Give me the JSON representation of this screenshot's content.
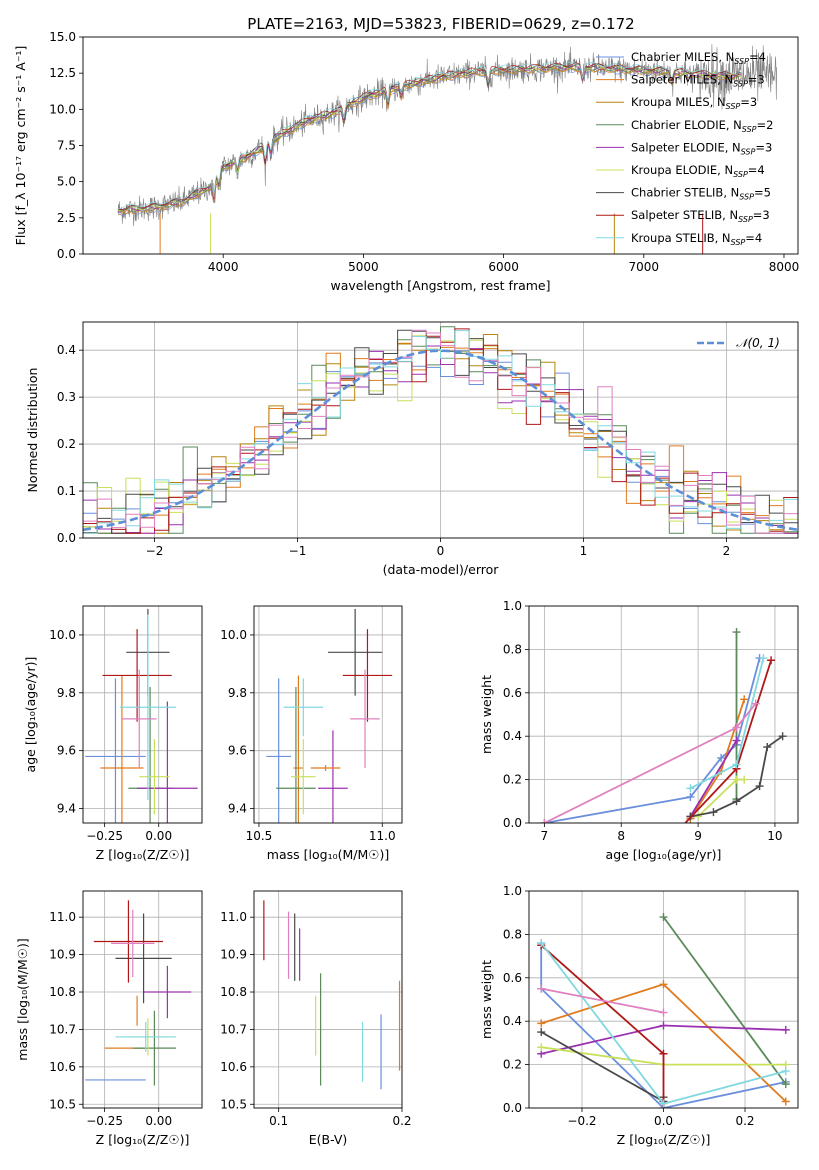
{
  "figure_title": "PLATE=2163, MJD=53823, FIBERID=0629, z=0.172",
  "colors": {
    "Chabrier MILES": "#6a8fdc",
    "Salpeter MILES": "#e07b1f",
    "Kroupa MILES": "#b8860b",
    "Chabrier ELODIE": "#5a8a5a",
    "Salpeter ELODIE": "#9b30b0",
    "Kroupa ELODIE": "#c8e05a",
    "Chabrier STELIB": "#4a4a4a",
    "Salpeter STELIB": "#b01818",
    "Kroupa STELIB": "#80d8e0",
    "pink": "#e080c0",
    "gauss": "#5b8fd8",
    "data": "#808080"
  },
  "chart_data": [
    {
      "id": "spectrum",
      "type": "line",
      "title": "PLATE=2163, MJD=53823, FIBERID=0629, z=0.172",
      "xlabel": "wavelength [Angstrom, rest frame]",
      "ylabel": "Flux [f_λ 10⁻¹⁷ erg cm⁻² s⁻¹ A⁻¹]",
      "xlim": [
        3000,
        8100
      ],
      "ylim": [
        0,
        15
      ],
      "xticks": [
        "4000",
        "5000",
        "6000",
        "7000",
        "8000"
      ],
      "yticks": [
        "0.0",
        "2.5",
        "5.0",
        "7.5",
        "10.0",
        "12.5",
        "15.0"
      ],
      "legend_position": "right",
      "legend": [
        {
          "label": "Chabrier MILES, N",
          "sub": "SSP",
          "tail": "=4",
          "color": "#6a8fdc"
        },
        {
          "label": "Salpeter MILES, N",
          "sub": "SSP",
          "tail": "=3",
          "color": "#e07b1f"
        },
        {
          "label": "Kroupa MILES, N",
          "sub": "SSP",
          "tail": "=3",
          "color": "#b8860b"
        },
        {
          "label": "Chabrier ELODIE, N",
          "sub": "SSP",
          "tail": "=2",
          "color": "#5a8a5a"
        },
        {
          "label": "Salpeter ELODIE, N",
          "sub": "SSP",
          "tail": "=3",
          "color": "#9b30b0"
        },
        {
          "label": "Kroupa ELODIE, N",
          "sub": "SSP",
          "tail": "=4",
          "color": "#c8e05a"
        },
        {
          "label": "Chabrier STELIB, N",
          "sub": "SSP",
          "tail": "=5",
          "color": "#4a4a4a"
        },
        {
          "label": "Salpeter STELIB, N",
          "sub": "SSP",
          "tail": "=3",
          "color": "#b01818"
        },
        {
          "label": "Kroupa STELIB, N",
          "sub": "SSP",
          "tail": "=4",
          "color": "#80d8e0"
        }
      ],
      "continuum": {
        "x": [
          3250,
          3500,
          3700,
          3900,
          4000,
          4200,
          4400,
          4600,
          4800,
          5000,
          5200,
          5400,
          5600,
          5800,
          6000,
          6200,
          6400,
          6600,
          6800,
          7000,
          7200,
          7400,
          7600
        ],
        "y": [
          3.0,
          3.2,
          3.6,
          4.6,
          6.0,
          6.9,
          8.2,
          9.2,
          9.8,
          10.8,
          11.4,
          11.9,
          12.3,
          12.6,
          12.7,
          12.8,
          12.9,
          12.9,
          12.8,
          12.7,
          12.6,
          12.4,
          12.3
        ]
      },
      "data_range": [
        3250,
        7950
      ],
      "model_range": [
        3250,
        7700
      ]
    },
    {
      "id": "residuals",
      "type": "bar",
      "xlabel": "(data-model)/error",
      "ylabel": "Normed distribution",
      "xlim": [
        -2.5,
        2.5
      ],
      "ylim": [
        0,
        0.46
      ],
      "xticks": [
        "−2",
        "−1",
        "0",
        "1",
        "2"
      ],
      "yticks": [
        "0.0",
        "0.1",
        "0.2",
        "0.3",
        "0.4"
      ],
      "legend": [
        "𝒩(0, 1)"
      ],
      "legend_position": "top-right",
      "bin_width": 0.1
    },
    {
      "id": "age-vs-Z",
      "type": "scatter",
      "xlabel": "Z [log₁₀(Z/Z☉)]",
      "ylabel": "age  [log₁₀(age/yr)]",
      "xlim": [
        -0.35,
        0.2
      ],
      "ylim": [
        9.35,
        10.1
      ],
      "xticks": [
        "−0.25",
        "0.00"
      ],
      "yticks": [
        "9.4",
        "9.6",
        "9.8",
        "10.0"
      ],
      "points": [
        {
          "x": -0.2,
          "y": 9.58,
          "xerr": 0.14,
          "yerr": 0.27,
          "color": "#6a8fdc"
        },
        {
          "x": -0.17,
          "y": 9.54,
          "xerr": 0.1,
          "yerr": 0.32,
          "color": "#e07b1f"
        },
        {
          "x": -0.04,
          "y": 9.47,
          "xerr": 0.1,
          "yerr": 0.35,
          "color": "#5a8a5a"
        },
        {
          "x": 0.04,
          "y": 9.47,
          "xerr": 0.14,
          "yerr": 0.3,
          "color": "#9b30b0"
        },
        {
          "x": -0.02,
          "y": 9.51,
          "xerr": 0.07,
          "yerr": 0.13,
          "color": "#c8e05a"
        },
        {
          "x": -0.05,
          "y": 9.94,
          "xerr": 0.1,
          "yerr": 0.15,
          "color": "#4a4a4a"
        },
        {
          "x": -0.1,
          "y": 9.86,
          "xerr": 0.16,
          "yerr": 0.16,
          "color": "#b01818"
        },
        {
          "x": -0.05,
          "y": 9.75,
          "xerr": 0.13,
          "yerr": 0.32,
          "color": "#80d8e0"
        },
        {
          "x": -0.09,
          "y": 9.71,
          "xerr": 0.08,
          "yerr": 0.17,
          "color": "#e080c0"
        }
      ]
    },
    {
      "id": "age-vs-mass",
      "type": "scatter",
      "xlabel": "mass [log₁₀(M/M☉)]",
      "ylabel": "",
      "xlim": [
        10.48,
        11.08
      ],
      "ylim": [
        9.35,
        10.1
      ],
      "xticks": [
        "10.5",
        "11.0"
      ],
      "yticks": [
        "9.4",
        "9.6",
        "9.8",
        "10.0"
      ],
      "points": [
        {
          "x": 10.58,
          "y": 9.58,
          "xerr": 0.05,
          "yerr": 0.27,
          "color": "#6a8fdc"
        },
        {
          "x": 10.66,
          "y": 9.54,
          "xerr": 0.02,
          "yerr": 0.32,
          "color": "#e07b1f"
        },
        {
          "x": 10.65,
          "y": 9.47,
          "xerr": 0.08,
          "yerr": 0.35,
          "color": "#5a8a5a"
        },
        {
          "x": 10.8,
          "y": 9.47,
          "xerr": 0.06,
          "yerr": 0.2,
          "color": "#9b30b0"
        },
        {
          "x": 10.68,
          "y": 9.51,
          "xerr": 0.05,
          "yerr": 0.13,
          "color": "#c8e05a"
        },
        {
          "x": 10.89,
          "y": 9.94,
          "xerr": 0.11,
          "yerr": 0.15,
          "color": "#4a4a4a"
        },
        {
          "x": 10.94,
          "y": 9.86,
          "xerr": 0.1,
          "yerr": 0.16,
          "color": "#b01818"
        },
        {
          "x": 10.68,
          "y": 9.75,
          "xerr": 0.08,
          "yerr": 0.1,
          "color": "#80d8e0"
        },
        {
          "x": 10.93,
          "y": 9.71,
          "xerr": 0.06,
          "yerr": 0.17,
          "color": "#e080c0"
        },
        {
          "x": 10.77,
          "y": 9.54,
          "xerr": 0.06,
          "yerr": 0.01,
          "color": "#e07b1f"
        }
      ]
    },
    {
      "id": "weight-vs-age",
      "type": "line",
      "xlabel": "age  [log₁₀(age/yr)]",
      "ylabel": "mass weight",
      "xlim": [
        6.8,
        10.3
      ],
      "ylim": [
        0,
        1
      ],
      "xticks": [
        "7",
        "8",
        "9",
        "10"
      ],
      "yticks": [
        "0.0",
        "0.2",
        "0.4",
        "0.6",
        "0.8",
        "1.0"
      ],
      "series": [
        {
          "color": "#6a8fdc",
          "x": [
            7.0,
            8.9,
            9.3,
            9.5,
            9.8
          ],
          "y": [
            0.0,
            0.12,
            0.3,
            0.36,
            0.76
          ]
        },
        {
          "color": "#e07b1f",
          "x": [
            8.9,
            9.3,
            9.6
          ],
          "y": [
            0.02,
            0.24,
            0.57
          ]
        },
        {
          "color": "#5a8a5a",
          "x": [
            9.5,
            9.5
          ],
          "y": [
            0.11,
            0.88
          ]
        },
        {
          "color": "#9b30b0",
          "x": [
            8.9,
            9.5
          ],
          "y": [
            0.03,
            0.38
          ]
        },
        {
          "color": "#c8e05a",
          "x": [
            9.0,
            9.5,
            9.6
          ],
          "y": [
            0.03,
            0.2,
            0.2
          ]
        },
        {
          "color": "#4a4a4a",
          "x": [
            8.9,
            9.2,
            9.5,
            9.8,
            9.9,
            10.1
          ],
          "y": [
            0.03,
            0.05,
            0.1,
            0.17,
            0.35,
            0.4
          ]
        },
        {
          "color": "#b01818",
          "x": [
            8.7,
            9.5,
            9.95
          ],
          "y": [
            -0.05,
            0.25,
            0.75
          ]
        },
        {
          "color": "#80d8e0",
          "x": [
            8.9,
            9.5,
            9.85
          ],
          "y": [
            0.16,
            0.27,
            0.76
          ]
        },
        {
          "color": "#e080c0",
          "x": [
            7.0,
            9.5,
            9.75
          ],
          "y": [
            0.0,
            0.44,
            0.55
          ]
        }
      ]
    },
    {
      "id": "mass-vs-Z",
      "type": "scatter",
      "xlabel": "Z [log₁₀(Z/Z☉)]",
      "ylabel": "mass [log₁₀(M/M☉)]",
      "xlim": [
        -0.35,
        0.2
      ],
      "ylim": [
        10.49,
        11.07
      ],
      "xticks": [
        "−0.25",
        "0.00"
      ],
      "yticks": [
        "10.5",
        "10.6",
        "10.7",
        "10.8",
        "10.9",
        "11.0"
      ],
      "points": [
        {
          "x": -0.2,
          "y": 10.565,
          "xerr": 0.14,
          "yerr": 0.0,
          "color": "#6a8fdc"
        },
        {
          "x": -0.15,
          "y": 10.65,
          "xerr": 0.1,
          "yerr": 0.0,
          "color": "#e07b1f"
        },
        {
          "x": -0.02,
          "y": 10.65,
          "xerr": 0.1,
          "yerr": 0.1,
          "color": "#5a8a5a"
        },
        {
          "x": 0.04,
          "y": 10.8,
          "xerr": 0.11,
          "yerr": 0.07,
          "color": "#9b30b0"
        },
        {
          "x": -0.05,
          "y": 10.68,
          "xerr": 0.1,
          "yerr": 0.05,
          "color": "#c8e05a"
        },
        {
          "x": -0.07,
          "y": 10.89,
          "xerr": 0.13,
          "yerr": 0.12,
          "color": "#4a4a4a"
        },
        {
          "x": -0.14,
          "y": 10.935,
          "xerr": 0.16,
          "yerr": 0.11,
          "color": "#b01818"
        },
        {
          "x": -0.06,
          "y": 10.68,
          "xerr": 0.14,
          "yerr": 0.04,
          "color": "#80d8e0"
        },
        {
          "x": -0.12,
          "y": 10.93,
          "xerr": 0.1,
          "yerr": 0.09,
          "color": "#e080c0"
        },
        {
          "x": -0.1,
          "y": 10.75,
          "xerr": 0.0,
          "yerr": 0.04,
          "color": "#e07b1f"
        }
      ]
    },
    {
      "id": "mass-vs-ebv",
      "type": "scatter",
      "xlabel": "E(B-V)",
      "ylabel": "",
      "xlim": [
        0.08,
        0.2
      ],
      "ylim": [
        10.49,
        11.07
      ],
      "xticks": [
        "0.1",
        "0.2"
      ],
      "yticks": [
        "10.5",
        "10.6",
        "10.7",
        "10.8",
        "10.9",
        "11.0"
      ],
      "points": [
        {
          "x": 0.088,
          "y": 10.965,
          "yerr": 0.08,
          "color": "#b01818"
        },
        {
          "x": 0.108,
          "y": 10.925,
          "yerr": 0.09,
          "color": "#e080c0"
        },
        {
          "x": 0.113,
          "y": 10.92,
          "yerr": 0.09,
          "color": "#4a4a4a"
        },
        {
          "x": 0.117,
          "y": 10.9,
          "yerr": 0.07,
          "color": "#9b30b0"
        },
        {
          "x": 0.13,
          "y": 10.71,
          "yerr": 0.08,
          "color": "#c8e05a"
        },
        {
          "x": 0.134,
          "y": 10.7,
          "yerr": 0.15,
          "color": "#5a8a5a"
        },
        {
          "x": 0.168,
          "y": 10.64,
          "yerr": 0.08,
          "color": "#80d8e0"
        },
        {
          "x": 0.183,
          "y": 10.64,
          "yerr": 0.1,
          "color": "#6a8fdc"
        },
        {
          "x": 0.198,
          "y": 10.71,
          "yerr": 0.12,
          "color": "#e07b1f"
        }
      ]
    },
    {
      "id": "weight-vs-Z",
      "type": "line",
      "xlabel": "Z [log₁₀(Z/Z☉)]",
      "ylabel": "mass weight",
      "xlim": [
        -0.33,
        0.33
      ],
      "ylim": [
        0,
        1
      ],
      "xticks": [
        "−0.2",
        "0.0",
        "0.2"
      ],
      "yticks": [
        "0.0",
        "0.2",
        "0.4",
        "0.6",
        "0.8",
        "1.0"
      ],
      "series": [
        {
          "color": "#6a8fdc",
          "x": [
            -0.3,
            -0.3,
            0.0,
            0.3
          ],
          "y": [
            0.76,
            0.55,
            0.0,
            0.12
          ]
        },
        {
          "color": "#e07b1f",
          "x": [
            -0.3,
            0.0,
            0.3
          ],
          "y": [
            0.39,
            0.57,
            0.03
          ]
        },
        {
          "color": "#5a8a5a",
          "x": [
            0.0,
            0.3
          ],
          "y": [
            0.88,
            0.11
          ]
        },
        {
          "color": "#9b30b0",
          "x": [
            -0.3,
            0.0,
            0.3
          ],
          "y": [
            0.25,
            0.38,
            0.36
          ]
        },
        {
          "color": "#c8e05a",
          "x": [
            -0.3,
            0.0,
            0.3
          ],
          "y": [
            0.28,
            0.2,
            0.2
          ]
        },
        {
          "color": "#4a4a4a",
          "x": [
            -0.3,
            0.0,
            0.0
          ],
          "y": [
            0.35,
            0.03,
            0.05
          ]
        },
        {
          "color": "#b01818",
          "x": [
            -0.3,
            0.0,
            0.0
          ],
          "y": [
            0.75,
            0.25,
            -0.05
          ]
        },
        {
          "color": "#80d8e0",
          "x": [
            -0.3,
            0.0,
            0.3
          ],
          "y": [
            0.76,
            0.02,
            0.17
          ]
        },
        {
          "color": "#e080c0",
          "x": [
            -0.3,
            0.0
          ],
          "y": [
            0.55,
            0.44
          ]
        }
      ]
    }
  ]
}
